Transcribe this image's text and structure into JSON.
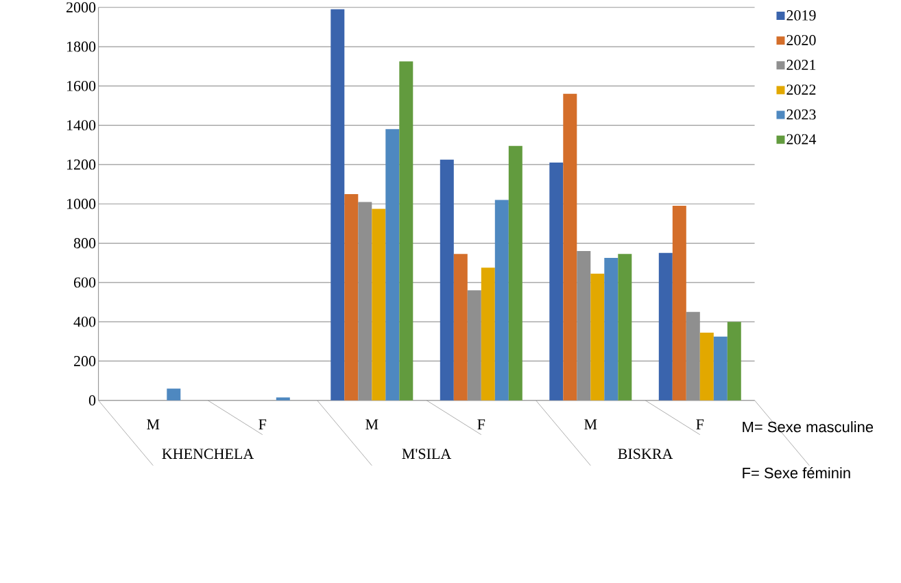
{
  "chart_data": {
    "type": "bar",
    "categories": [
      "M",
      "F",
      "M",
      "F",
      "M",
      "F"
    ],
    "series": [
      {
        "name": "2019",
        "color": "#3a64ad",
        "values": [
          0,
          0,
          1990,
          1225,
          1210,
          750
        ]
      },
      {
        "name": "2020",
        "color": "#d46e2a",
        "values": [
          0,
          0,
          1050,
          745,
          1560,
          990
        ]
      },
      {
        "name": "2021",
        "color": "#8f8f8f",
        "values": [
          0,
          0,
          1010,
          560,
          760,
          450
        ]
      },
      {
        "name": "2022",
        "color": "#e2a800",
        "values": [
          0,
          0,
          975,
          675,
          645,
          345
        ]
      },
      {
        "name": "2023",
        "color": "#4e88c0",
        "values": [
          60,
          15,
          1380,
          1020,
          725,
          325
        ]
      },
      {
        "name": "2024",
        "color": "#629b3e",
        "values": [
          0,
          0,
          1725,
          1295,
          745,
          400
        ]
      }
    ],
    "ylim": [
      0,
      2000
    ],
    "yticks": [
      0,
      200,
      400,
      600,
      800,
      1000,
      1200,
      1400,
      1600,
      1800,
      2000
    ],
    "grid": "y",
    "legend": "top right",
    "annotations": [
      "KHENCHELA",
      "M'SILA",
      "BISKRA",
      "M= Sexe masculine",
      "F= Sexe féminin"
    ]
  }
}
